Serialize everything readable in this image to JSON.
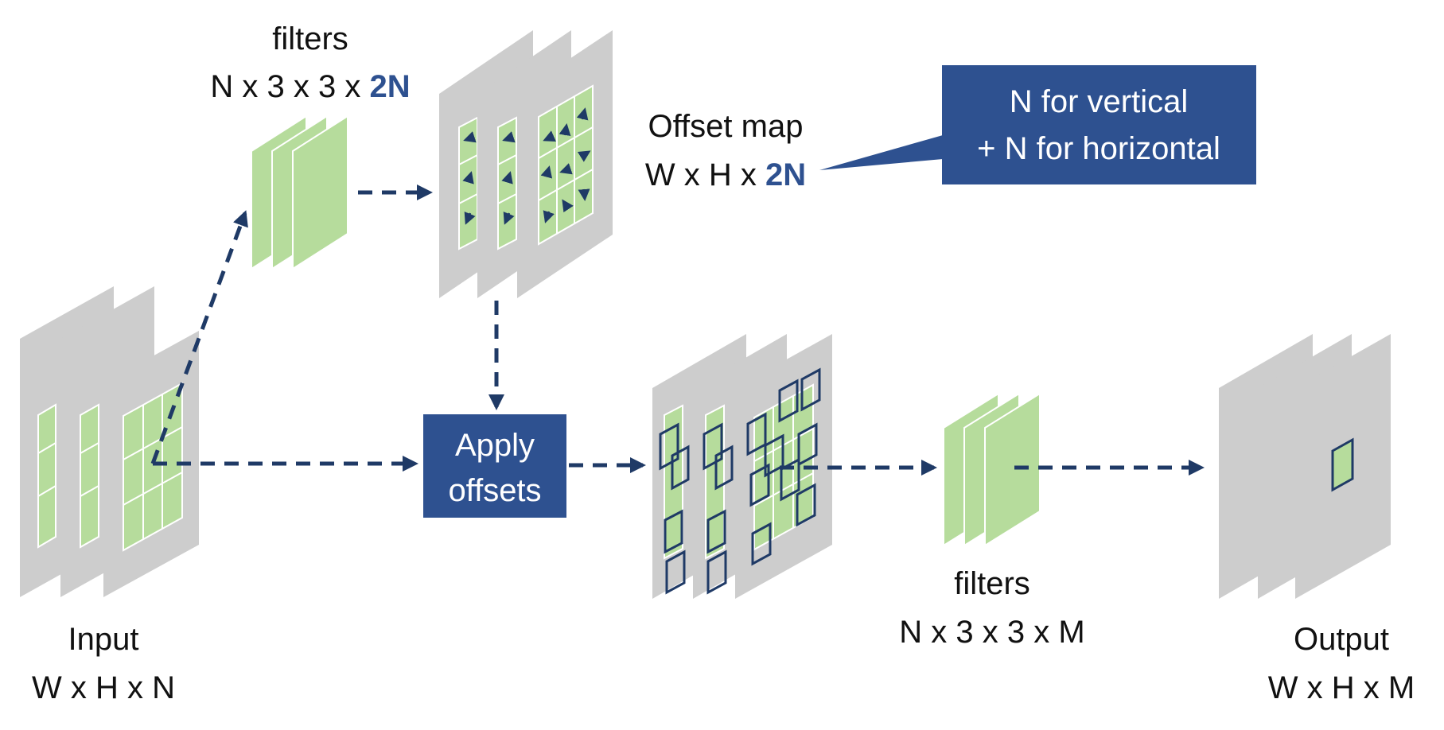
{
  "labels": {
    "filters_top_title": "filters",
    "filters_top_dims_prefix": "N x 3 x 3 x ",
    "filters_top_dims_emph": "2N",
    "offset_map_title": "Offset map",
    "offset_map_dims_prefix": "W x H x ",
    "offset_map_dims_emph": "2N",
    "callout_line1": "N for vertical",
    "callout_line2": "+ N for horizontal",
    "apply_line1": "Apply",
    "apply_line2": "offsets",
    "input_title": "Input",
    "input_dims": "W x H x N",
    "filters_bottom_title": "filters",
    "filters_bottom_dims": "N x 3 x 3 x M",
    "output_title": "Output",
    "output_dims": "W x H x M"
  },
  "colors": {
    "accent": "#2e5190",
    "emphasis_text": "#2e5190",
    "arrow": "#1f3a66",
    "sheet_gray": "#cdcdcd",
    "filter_green": "#b6dc9c",
    "grid_green": "#b6dc9c"
  },
  "offset_arrow_icons": [
    "arrow-left-icon",
    "arrow-up-icon",
    "arrow-down-right-icon"
  ]
}
